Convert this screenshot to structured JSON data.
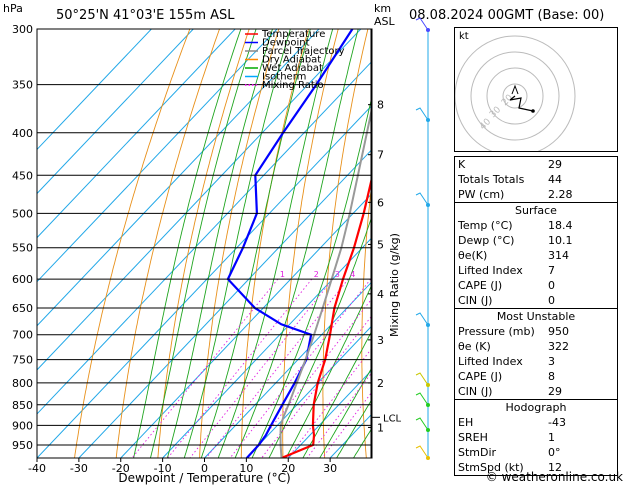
{
  "header": {
    "units_pressure": "hPa",
    "location": "50°25'N  41°03'E  155m  ASL",
    "units_km": "km",
    "units_asl": "ASL",
    "datetime": "08.08.2024  00GMT  (Base: 00)"
  },
  "legend": [
    {
      "label": "Temperature",
      "color": "#ff0000"
    },
    {
      "label": "Dewpoint",
      "color": "#0000ff"
    },
    {
      "label": "Parcel Trajectory",
      "color": "#888888"
    },
    {
      "label": "Dry Adiabat",
      "color": "#ff8800"
    },
    {
      "label": "Wet Adiabat",
      "color": "#00aa00"
    },
    {
      "label": "Isotherm",
      "color": "#00aaff"
    },
    {
      "label": "Mixing Ratio",
      "color": "#ff00ff"
    }
  ],
  "chart_data": {
    "type": "line",
    "xlabel": "Dewpoint / Temperature (°C)",
    "ylabel_right": "Mixing Ratio (g/kg)",
    "pressure_ticks": [
      300,
      350,
      400,
      450,
      500,
      550,
      600,
      650,
      700,
      750,
      800,
      850,
      900,
      950
    ],
    "temp_ticks": [
      -40,
      -30,
      -20,
      -10,
      0,
      10,
      20,
      30
    ],
    "km_ticks": [
      {
        "label": "8",
        "p": 370
      },
      {
        "label": "7",
        "p": 425
      },
      {
        "label": "6",
        "p": 485
      },
      {
        "label": "5",
        "p": 545
      },
      {
        "label": "4",
        "p": 625
      },
      {
        "label": "3",
        "p": 710
      },
      {
        "label": "2",
        "p": 800
      },
      {
        "label": "1",
        "p": 905
      }
    ],
    "lcl_label": "LCL",
    "lcl_p": 880,
    "mixing_ratio_labels": [
      "1",
      "2",
      "3",
      "4",
      "6",
      "8",
      "10",
      "15",
      "20",
      "25"
    ],
    "mixing_ratio_values": [
      1,
      2,
      3,
      4,
      6,
      8,
      10,
      15,
      20,
      25
    ],
    "series": [
      {
        "name": "Temperature",
        "color": "#ff0000",
        "p": [
          985,
          950,
          925,
          900,
          850,
          800,
          750,
          700,
          650,
          600,
          550,
          500,
          450,
          400,
          350,
          300
        ],
        "t": [
          18.4,
          23.0,
          21.0,
          18.5,
          14.0,
          10.0,
          6.5,
          2.0,
          -3.0,
          -7.5,
          -12.0,
          -17.5,
          -24.0,
          -31.5,
          -39.5,
          -47.0
        ]
      },
      {
        "name": "Dewpoint",
        "color": "#0000ff",
        "p": [
          985,
          950,
          925,
          900,
          850,
          800,
          750,
          700,
          680,
          650,
          600,
          550,
          500,
          450,
          400,
          350,
          300
        ],
        "t": [
          10.1,
          10.0,
          9.5,
          8.5,
          6.5,
          4.5,
          2.0,
          -2.5,
          -12.0,
          -22.0,
          -35.0,
          -38.5,
          -43.0,
          -52.0,
          -55.0,
          -58.0,
          -62.0
        ]
      },
      {
        "name": "Parcel Trajectory",
        "color": "#999999",
        "p": [
          985,
          950,
          925,
          900,
          880,
          850,
          800,
          750,
          700,
          650,
          600,
          550,
          500,
          450,
          400,
          350,
          300
        ],
        "t": [
          18.4,
          15.2,
          13.0,
          10.8,
          9.6,
          8.0,
          5.0,
          1.8,
          -1.8,
          -5.8,
          -10.2,
          -15.0,
          -20.8,
          -27.5,
          -35.0,
          -43.5,
          -53.0
        ]
      }
    ]
  },
  "hodograph": {
    "title": "kt",
    "ring_labels": [
      "40",
      "30",
      "20"
    ]
  },
  "indices": [
    {
      "label": "K",
      "value": "29"
    },
    {
      "label": "Totals Totals",
      "value": "44"
    },
    {
      "label": "PW (cm)",
      "value": "2.28"
    }
  ],
  "surface": {
    "title": "Surface",
    "rows": [
      {
        "label": "Temp (°C)",
        "value": "18.4"
      },
      {
        "label": "Dewp (°C)",
        "value": "10.1"
      },
      {
        "label": "θe(K)",
        "value": "314"
      },
      {
        "label": "Lifted Index",
        "value": "7"
      },
      {
        "label": "CAPE (J)",
        "value": "0"
      },
      {
        "label": "CIN (J)",
        "value": "0"
      }
    ]
  },
  "most_unstable": {
    "title": "Most Unstable",
    "rows": [
      {
        "label": "Pressure (mb)",
        "value": "950"
      },
      {
        "label": "θe (K)",
        "value": "322"
      },
      {
        "label": "Lifted Index",
        "value": "3"
      },
      {
        "label": "CAPE (J)",
        "value": "8"
      },
      {
        "label": "CIN (J)",
        "value": "29"
      }
    ]
  },
  "hodograph_box": {
    "title": "Hodograph",
    "rows": [
      {
        "label": "EH",
        "value": "-43"
      },
      {
        "label": "SREH",
        "value": "1"
      },
      {
        "label": "StmDir",
        "value": "0°"
      },
      {
        "label": "StmSpd (kt)",
        "value": "12"
      }
    ]
  },
  "footer": "© weatheronline.co.uk"
}
